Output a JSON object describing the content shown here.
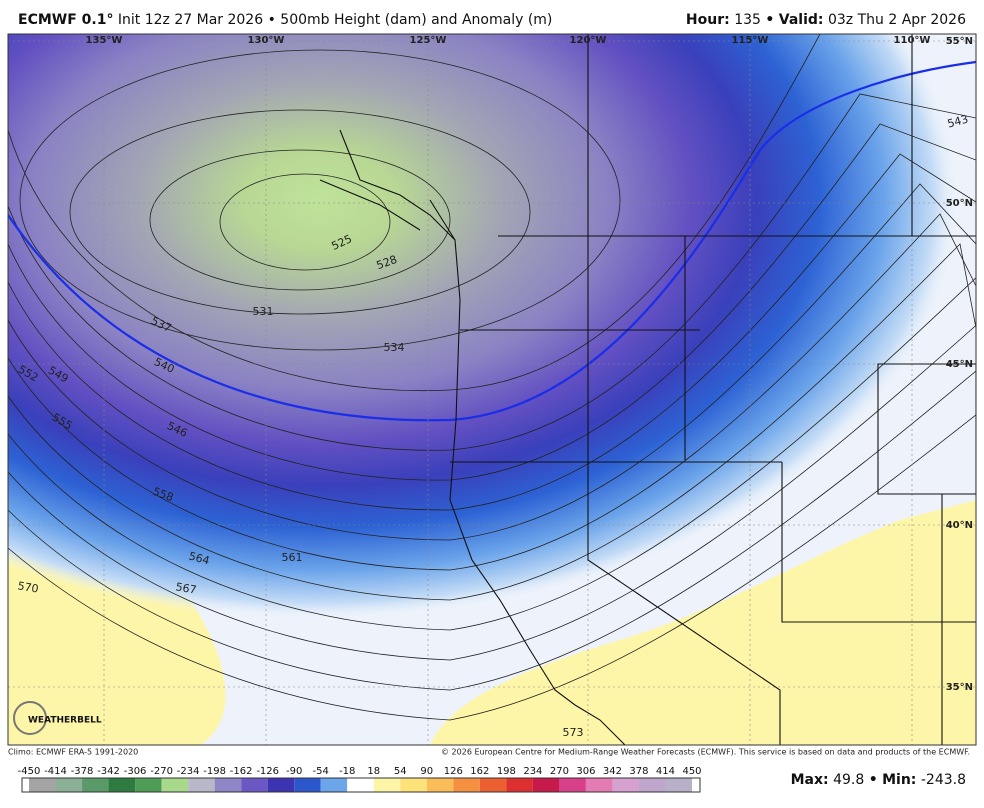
{
  "header": {
    "model": "ECMWF 0.1°",
    "init": "Init 12z 27 Mar 2026",
    "separator": "•",
    "product": "500mb Height (dam) and Anomaly (m)",
    "hour_label": "Hour:",
    "hour": "135",
    "valid_label": "Valid:",
    "valid": "03z Thu 2 Apr 2026"
  },
  "map": {
    "longitudes": [
      "135°W",
      "130°W",
      "125°W",
      "120°W",
      "115°W",
      "110°W"
    ],
    "latitudes": [
      "55°N",
      "50°N",
      "45°N",
      "40°N",
      "35°N"
    ],
    "contour_labels": [
      "525",
      "528",
      "531",
      "534",
      "537",
      "540",
      "543",
      "546",
      "549",
      "552",
      "555",
      "558",
      "561",
      "564",
      "567",
      "570",
      "573"
    ],
    "logo": "WEATHERBELL"
  },
  "footer": {
    "climo": "Climo: ECMWF ERA-5 1991-2020",
    "copyright": "© 2026 European Centre for Medium-Range Weather Forecasts (ECMWF). This service is based on data and products of the ECMWF."
  },
  "colorbar": {
    "labels": [
      -450,
      -414,
      -378,
      -342,
      -306,
      -270,
      -234,
      -198,
      -162,
      -126,
      -90,
      -54,
      -18,
      18,
      54,
      90,
      126,
      162,
      198,
      234,
      270,
      306,
      342,
      378,
      414,
      450
    ],
    "colors": [
      "#a4a4a4",
      "#8bb095",
      "#5a9968",
      "#2e7b42",
      "#4e9c55",
      "#a8d88a",
      "#b8b8c8",
      "#8e86c6",
      "#6b58c4",
      "#3d34b3",
      "#2c56cc",
      "#6ba5ea",
      "#ffffff",
      "#fdf6a6",
      "#fde27a",
      "#fbbd5a",
      "#f59040",
      "#ec5f30",
      "#dd2f2f",
      "#c81a4a",
      "#d8408a",
      "#e57bb3",
      "#d6a0cf",
      "#bfa6cc",
      "#b8b0c8"
    ]
  },
  "stats": {
    "max_label": "Max:",
    "max": 49.8,
    "separator": "•",
    "min_label": "Min:",
    "min": -243.8
  }
}
